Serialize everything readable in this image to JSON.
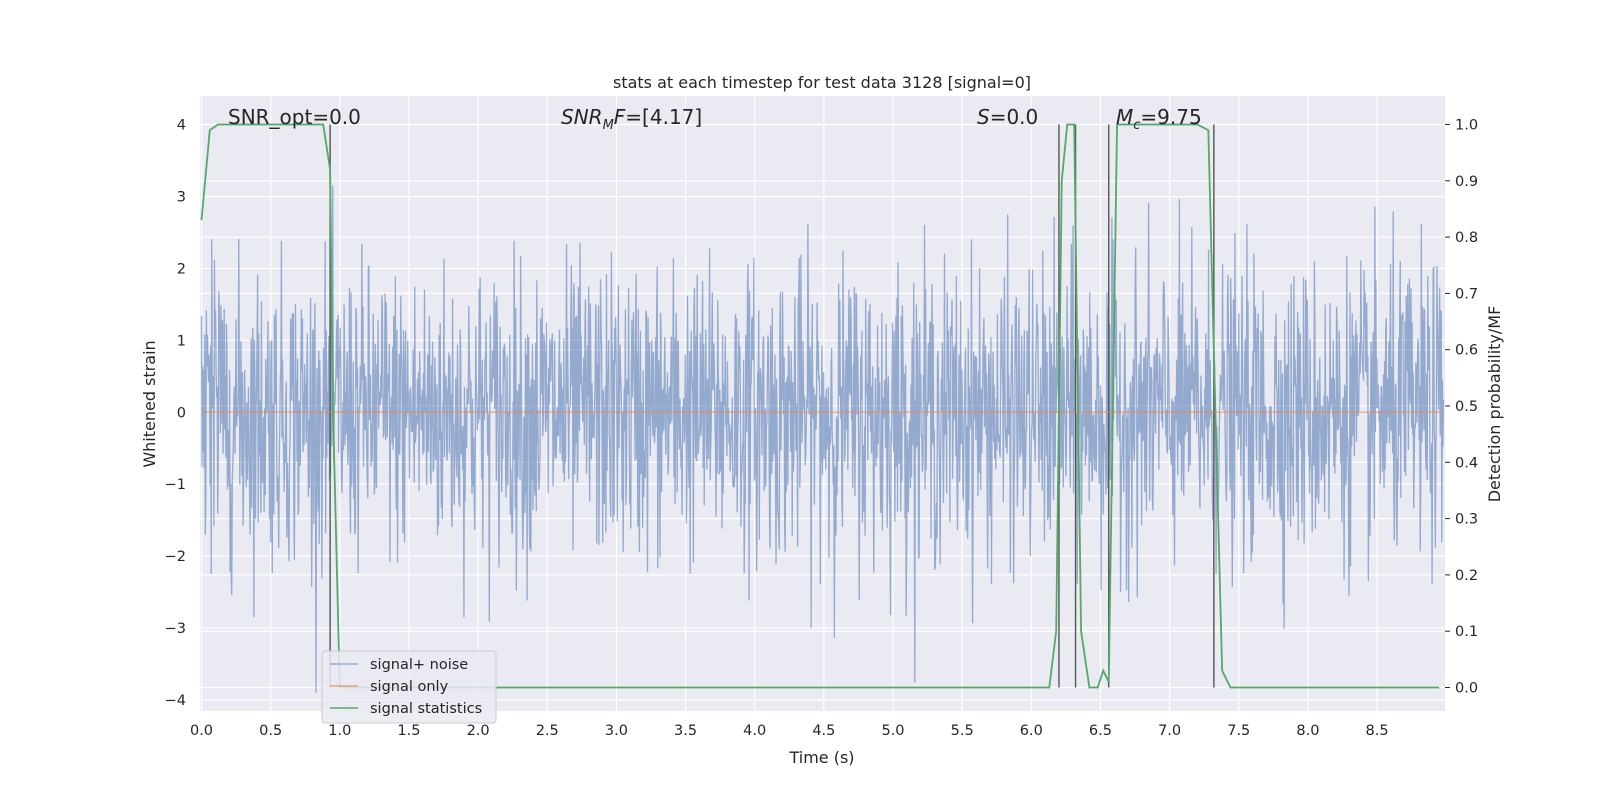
{
  "chart_data": {
    "type": "line",
    "title": "stats at each timestep for test data 3128 [signal=0]",
    "xlabel": "Time (s)",
    "ylabel": "Whitened strain",
    "y2label": "Detection probability/MF",
    "xlim": [
      0,
      9.0
    ],
    "ylim": [
      -4.2,
      4.4
    ],
    "y2lim": [
      -0.045,
      1.045
    ],
    "xticks": [
      "0.0",
      "0.5",
      "1.0",
      "1.5",
      "2.0",
      "2.5",
      "3.0",
      "3.5",
      "4.0",
      "4.5",
      "5.0",
      "5.5",
      "6.0",
      "6.5",
      "7.0",
      "7.5",
      "8.0",
      "8.5"
    ],
    "yticks": [
      "4",
      "3",
      "2",
      "1",
      "0",
      "−1",
      "−2",
      "−3",
      "−4"
    ],
    "y2ticks": [
      "1.0",
      "0.9",
      "0.8",
      "0.7",
      "0.6",
      "0.5",
      "0.4",
      "0.3",
      "0.2",
      "0.1",
      "0.0"
    ],
    "grid": true,
    "legend_position": "lower-left",
    "background": "#eaeaf2",
    "annotations": {
      "snr_opt": "SNR_opt=0.0",
      "snr_mf_base": "SNR",
      "snr_mf_sub": "M",
      "snr_mf_mid": "F",
      "snr_mf_value": "=[4.17]",
      "s_base": "S",
      "s_value": "=0.0",
      "mc_base": "M",
      "mc_sub": "c",
      "mc_value": "=9.75"
    },
    "series": [
      {
        "name": "signal+ noise",
        "color": "#4c72b0",
        "kind": "noise",
        "amplitude_std": 1.0,
        "value_range": [
          -3.9,
          4.0
        ]
      },
      {
        "name": "signal only",
        "color": "#dd8452",
        "kind": "flat",
        "values": [
          0,
          0
        ]
      },
      {
        "name": "signal statistics",
        "color": "#55a868",
        "axis": "right",
        "x": [
          0.0,
          0.06,
          0.12,
          0.2,
          0.5,
          0.8,
          0.88,
          0.93,
          0.95,
          1.0,
          1.5,
          2.0,
          3.0,
          4.0,
          5.0,
          6.0,
          6.13,
          6.18,
          6.22,
          6.26,
          6.31,
          6.36,
          6.42,
          6.48,
          6.52,
          6.56,
          6.62,
          6.7,
          6.8,
          7.0,
          7.2,
          7.28,
          7.33,
          7.38,
          7.44,
          7.6,
          8.0,
          8.5,
          8.95
        ],
        "y": [
          0.83,
          0.99,
          1.0,
          1.0,
          1.0,
          1.0,
          1.0,
          0.92,
          0.5,
          0.0,
          0.0,
          0.0,
          0.0,
          0.0,
          0.0,
          0.0,
          0.0,
          0.1,
          0.9,
          1.0,
          1.0,
          0.1,
          0.0,
          0.0,
          0.03,
          0.01,
          1.0,
          1.0,
          1.0,
          1.0,
          1.0,
          0.99,
          0.5,
          0.03,
          0.0,
          0.0,
          0.0,
          0.0,
          0.0
        ]
      }
    ],
    "vertical_markers": [
      0.93,
      6.2,
      6.32,
      6.56,
      7.32
    ],
    "legend": [
      "signal+ noise",
      "signal only",
      "signal statistics"
    ]
  }
}
